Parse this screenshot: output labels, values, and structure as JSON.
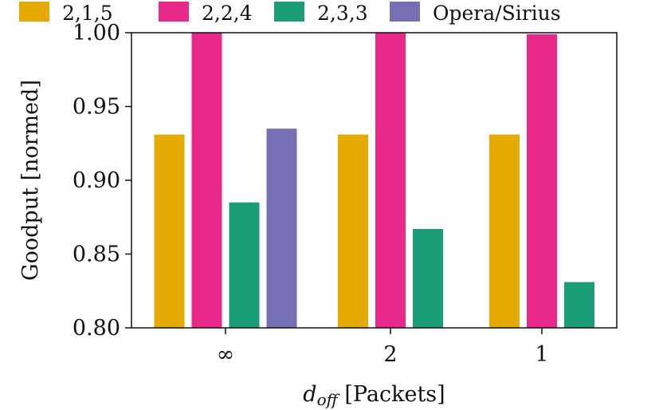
{
  "chart_data": {
    "type": "bar",
    "title": "",
    "xlabel_main": "d",
    "xlabel_sub": "off",
    "xlabel_rest": " [Packets]",
    "ylabel": "Goodput [normed]",
    "ylim": [
      0.8,
      1.0
    ],
    "yticks": [
      0.8,
      0.85,
      0.9,
      0.95,
      1.0
    ],
    "ytick_labels": [
      "0.80",
      "0.85",
      "0.90",
      "0.95",
      "1.00"
    ],
    "categories": [
      "∞",
      "2",
      "1"
    ],
    "legend_position": "top",
    "series": [
      {
        "name": "2,1,5",
        "color": "#E6AB02",
        "values": [
          0.931,
          0.931,
          0.931
        ]
      },
      {
        "name": "2,2,4",
        "color": "#E7298A",
        "values": [
          1.0,
          1.0,
          0.999
        ]
      },
      {
        "name": "2,3,3",
        "color": "#1B9E77",
        "values": [
          0.885,
          0.867,
          0.831
        ]
      },
      {
        "name": "Opera/Sirius",
        "color": "#7570B3",
        "values": [
          0.935,
          null,
          null
        ]
      }
    ]
  }
}
